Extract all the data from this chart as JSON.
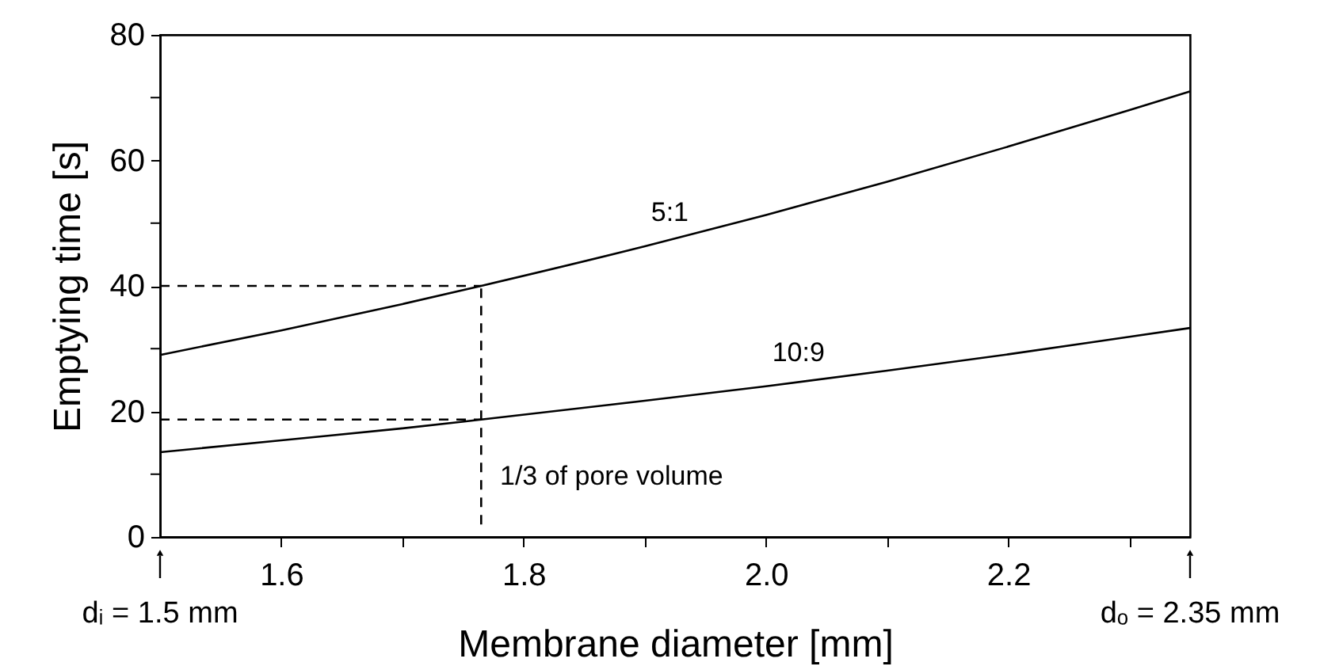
{
  "chart_data": {
    "type": "line",
    "xlabel": "Membrane diameter   [mm]",
    "ylabel": "Emptying time  [s]",
    "xlim": [
      1.5,
      2.35
    ],
    "ylim": [
      0,
      80
    ],
    "xticks": [
      1.6,
      {
        "value": 1.7,
        "label": null
      },
      1.8,
      {
        "value": 1.9,
        "label": null
      },
      {
        "value": 2.0,
        "label": "2.0"
      },
      {
        "value": 2.1,
        "label": null
      },
      2.2,
      {
        "value": 2.3,
        "label": null
      }
    ],
    "yticks": [
      0,
      {
        "value": 10,
        "label": null
      },
      20,
      {
        "value": 30,
        "label": null
      },
      40,
      {
        "value": 50,
        "label": null
      },
      60,
      {
        "value": 70,
        "label": null
      },
      80
    ],
    "grid": false,
    "marker": "none",
    "series": [
      {
        "name": "5:1",
        "color": "#000000",
        "line_style": "solid",
        "x": [
          1.5,
          1.6,
          1.7,
          1.765,
          1.9,
          2.0,
          2.1,
          2.2,
          2.3,
          2.35
        ],
        "values": [
          29,
          32.9,
          37.1,
          40,
          46.3,
          51.3,
          56.6,
          62.2,
          68,
          71
        ]
      },
      {
        "name": "10:9",
        "color": "#000000",
        "line_style": "solid",
        "x": [
          1.5,
          1.6,
          1.7,
          1.765,
          1.9,
          2.0,
          2.1,
          2.2,
          2.3,
          2.35
        ],
        "values": [
          13.5,
          15.4,
          17.3,
          18.7,
          21.7,
          24,
          26.5,
          29.1,
          31.9,
          33.3
        ]
      },
      {
        "color": "#000000",
        "line_style": "dashed",
        "x": [
          1.5,
          1.765
        ],
        "values": [
          40,
          40
        ]
      },
      {
        "color": "#000000",
        "line_style": "dashed",
        "x": [
          1.5,
          1.765
        ],
        "values": [
          18.7,
          18.7
        ]
      },
      {
        "color": "#000000",
        "line_style": "dashed",
        "x": [
          1.765,
          1.765
        ],
        "values": [
          2,
          40
        ]
      }
    ],
    "annotations": [
      "1/3 of pore volume",
      {
        "text": "dᵢ = 1.5 mm",
        "x": 1.5
      },
      {
        "text": "dₒ = 2.35 mm",
        "x": 2.35
      }
    ]
  }
}
